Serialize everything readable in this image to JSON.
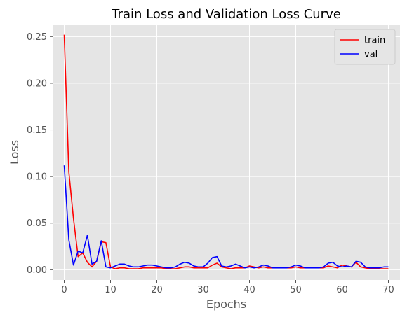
{
  "chart_data": {
    "type": "line",
    "title": "Train Loss and Validation Loss Curve",
    "xlabel": "Epochs",
    "ylabel": "Loss",
    "xlim": [
      -2.5,
      72.5
    ],
    "ylim": [
      -0.011,
      0.263
    ],
    "xticks": [
      0,
      10,
      20,
      30,
      40,
      50,
      60,
      70
    ],
    "xtick_labels": [
      "0",
      "10",
      "20",
      "30",
      "40",
      "50",
      "60",
      "70"
    ],
    "yticks": [
      0.0,
      0.05,
      0.1,
      0.15,
      0.2,
      0.25
    ],
    "ytick_labels": [
      "0.00",
      "0.05",
      "0.10",
      "0.15",
      "0.20",
      "0.25"
    ],
    "grid": true,
    "legend_position": "top-right",
    "series": [
      {
        "name": "train",
        "color": "#ff0000",
        "x": [
          0,
          1,
          2,
          3,
          4,
          5,
          6,
          7,
          8,
          9,
          10,
          11,
          12,
          13,
          14,
          15,
          16,
          17,
          18,
          19,
          20,
          21,
          22,
          23,
          24,
          25,
          26,
          27,
          28,
          29,
          30,
          31,
          32,
          33,
          34,
          35,
          36,
          37,
          38,
          39,
          40,
          41,
          42,
          43,
          44,
          45,
          46,
          47,
          48,
          49,
          50,
          51,
          52,
          53,
          54,
          55,
          56,
          57,
          58,
          59,
          60,
          61,
          62,
          63,
          64,
          65,
          66,
          67,
          68,
          69,
          70
        ],
        "values": [
          0.252,
          0.105,
          0.055,
          0.014,
          0.018,
          0.008,
          0.003,
          0.009,
          0.03,
          0.029,
          0.003,
          0.001,
          0.002,
          0.002,
          0.001,
          0.001,
          0.001,
          0.002,
          0.002,
          0.002,
          0.002,
          0.002,
          0.001,
          0.001,
          0.001,
          0.002,
          0.003,
          0.003,
          0.002,
          0.002,
          0.002,
          0.002,
          0.005,
          0.007,
          0.003,
          0.002,
          0.001,
          0.002,
          0.002,
          0.002,
          0.004,
          0.003,
          0.002,
          0.003,
          0.002,
          0.002,
          0.002,
          0.002,
          0.002,
          0.002,
          0.003,
          0.002,
          0.002,
          0.002,
          0.002,
          0.002,
          0.002,
          0.004,
          0.003,
          0.002,
          0.005,
          0.004,
          0.003,
          0.008,
          0.003,
          0.002,
          0.001,
          0.001,
          0.001,
          0.001,
          0.001
        ]
      },
      {
        "name": "val",
        "color": "#0000ff",
        "x": [
          0,
          1,
          2,
          3,
          4,
          5,
          6,
          7,
          8,
          9,
          10,
          11,
          12,
          13,
          14,
          15,
          16,
          17,
          18,
          19,
          20,
          21,
          22,
          23,
          24,
          25,
          26,
          27,
          28,
          29,
          30,
          31,
          32,
          33,
          34,
          35,
          36,
          37,
          38,
          39,
          40,
          41,
          42,
          43,
          44,
          45,
          46,
          47,
          48,
          49,
          50,
          51,
          52,
          53,
          54,
          55,
          56,
          57,
          58,
          59,
          60,
          61,
          62,
          63,
          64,
          65,
          66,
          67,
          68,
          69,
          70
        ],
        "values": [
          0.112,
          0.032,
          0.005,
          0.02,
          0.018,
          0.037,
          0.006,
          0.009,
          0.031,
          0.003,
          0.002,
          0.004,
          0.006,
          0.006,
          0.004,
          0.003,
          0.003,
          0.004,
          0.005,
          0.005,
          0.004,
          0.003,
          0.002,
          0.002,
          0.003,
          0.006,
          0.008,
          0.007,
          0.004,
          0.003,
          0.003,
          0.007,
          0.013,
          0.014,
          0.004,
          0.003,
          0.004,
          0.006,
          0.004,
          0.002,
          0.003,
          0.002,
          0.003,
          0.005,
          0.004,
          0.002,
          0.002,
          0.002,
          0.002,
          0.003,
          0.005,
          0.004,
          0.002,
          0.002,
          0.002,
          0.002,
          0.003,
          0.007,
          0.008,
          0.004,
          0.003,
          0.004,
          0.003,
          0.009,
          0.008,
          0.003,
          0.002,
          0.002,
          0.002,
          0.003,
          0.003
        ]
      }
    ]
  }
}
